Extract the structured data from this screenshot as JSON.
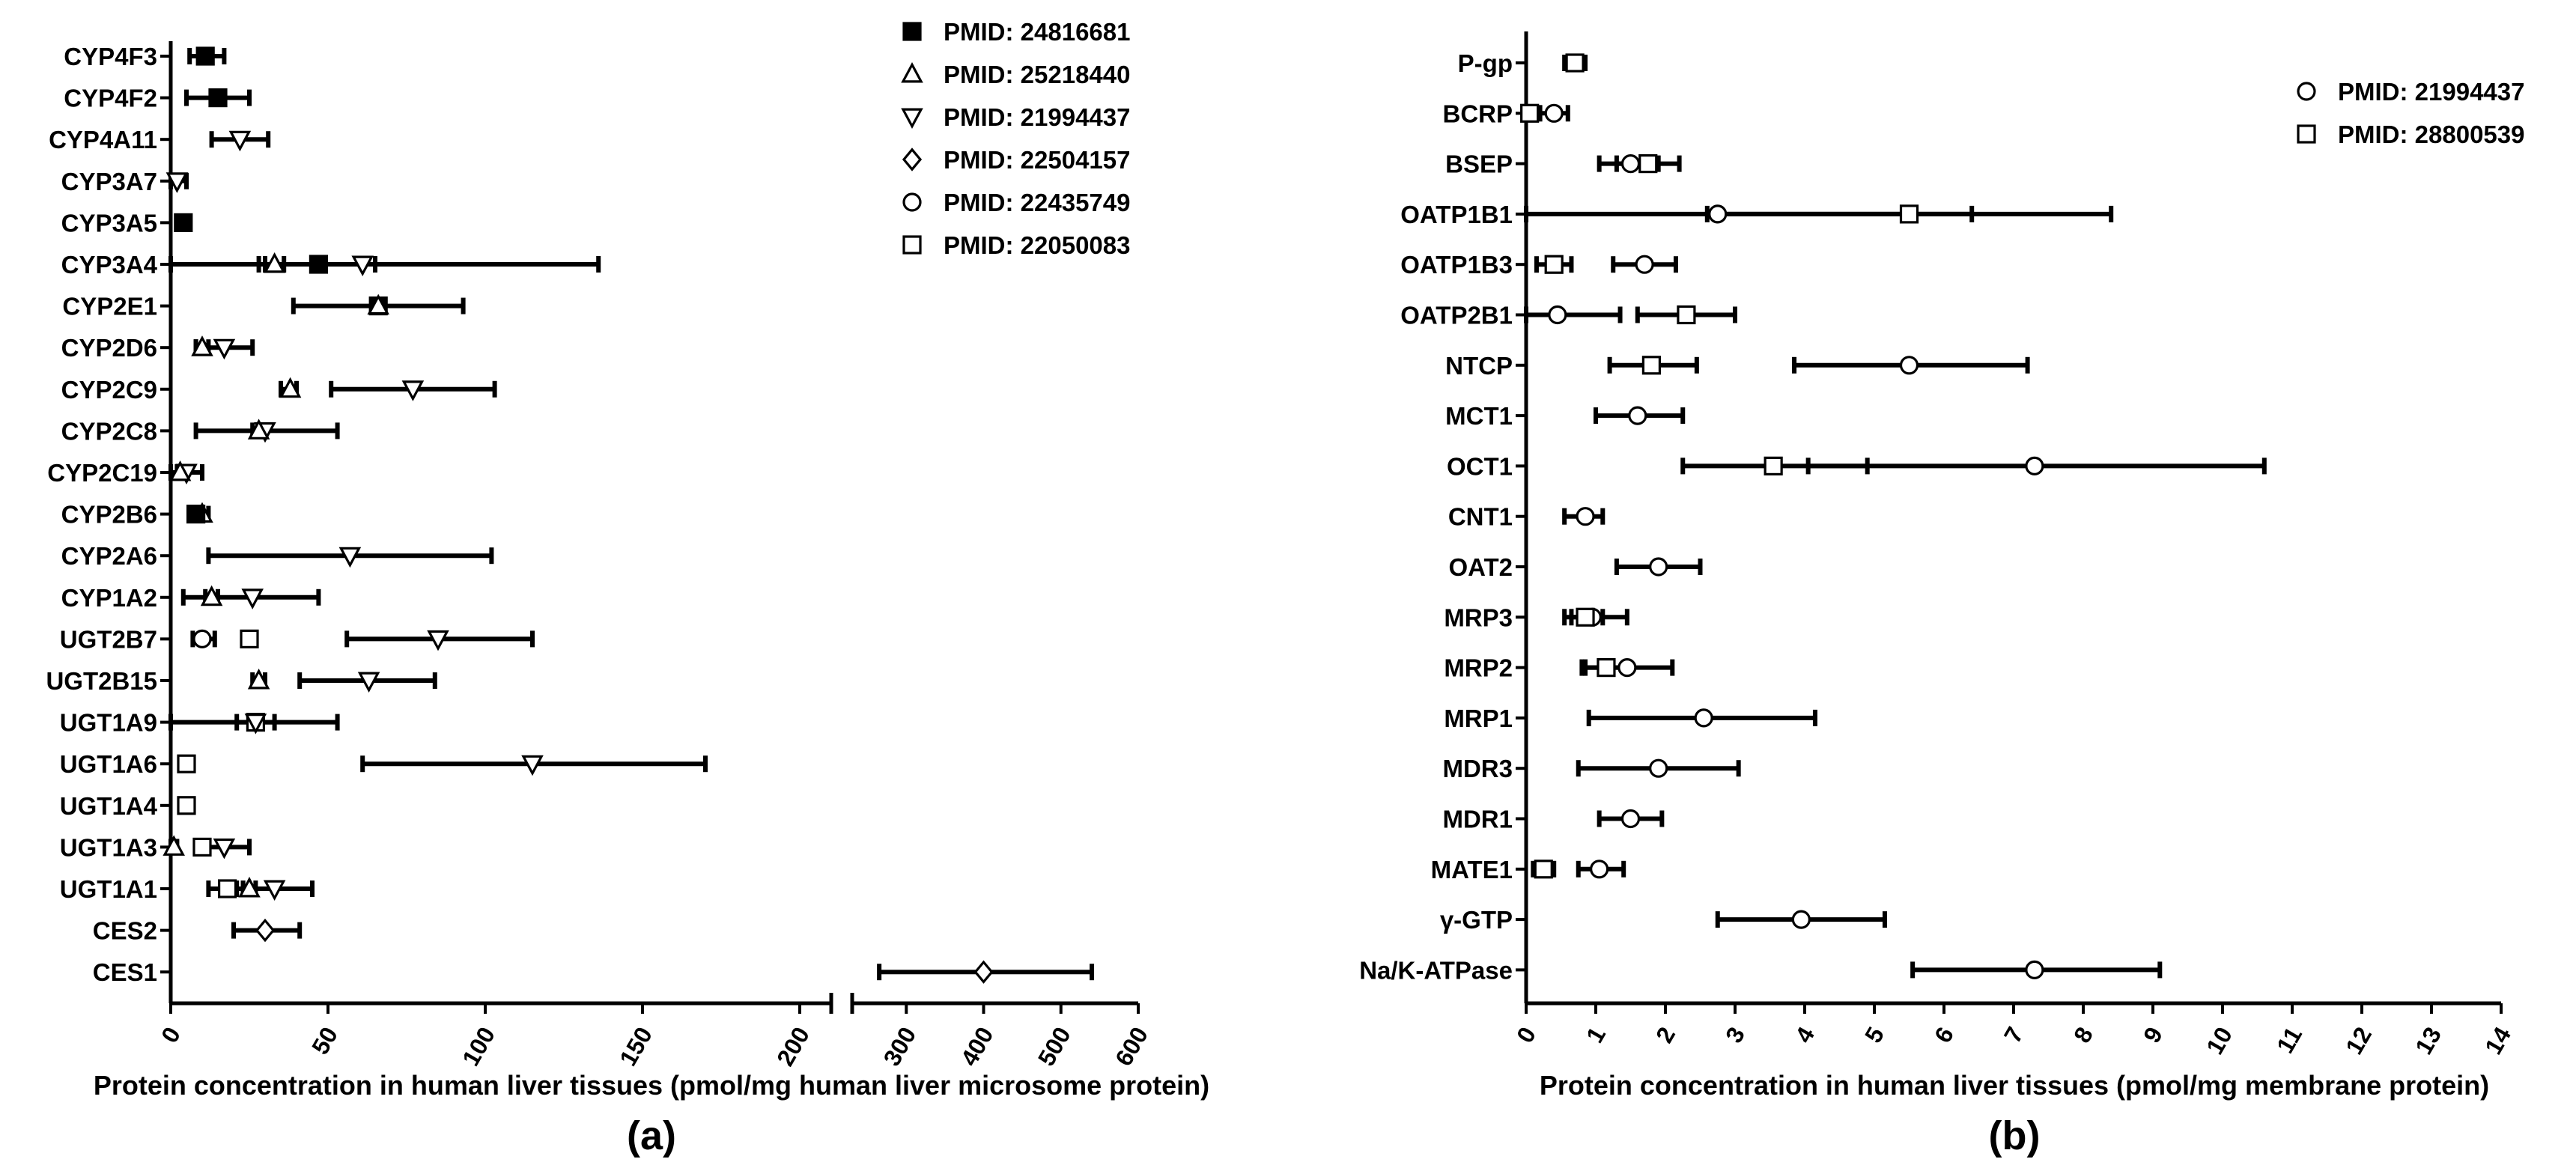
{
  "chart_data": [
    {
      "panel": "a",
      "type": "scatter",
      "panel_label": "(a)",
      "xlabel": "Protein concentration in human liver tissues (pmol/mg human liver microsome protein)",
      "ylabel": "",
      "xaxis": {
        "broken": true,
        "segment1": {
          "range": [
            0,
            210
          ],
          "ticks": [
            0,
            50,
            100,
            150,
            200
          ]
        },
        "segment2": {
          "range": [
            230,
            600
          ],
          "ticks": [
            300,
            400,
            500,
            600
          ]
        }
      },
      "grid": false,
      "legend": {
        "position": "top-right",
        "entries": [
          {
            "id": "s24816681",
            "label": "PMID: 24816681",
            "marker": "square-filled"
          },
          {
            "id": "s25218440",
            "label": "PMID: 25218440",
            "marker": "triangle-up"
          },
          {
            "id": "s21994437",
            "label": "PMID: 21994437",
            "marker": "triangle-down"
          },
          {
            "id": "s22504157",
            "label": "PMID: 22504157",
            "marker": "diamond"
          },
          {
            "id": "s22435749",
            "label": "PMID: 22435749",
            "marker": "circle"
          },
          {
            "id": "s22050083",
            "label": "PMID: 22050083",
            "marker": "square"
          }
        ]
      },
      "categories": [
        "CYP4F3",
        "CYP4F2",
        "CYP4A11",
        "CYP3A7",
        "CYP3A5",
        "CYP3A4",
        "CYP2E1",
        "CYP2D6",
        "CYP2C9",
        "CYP2C8",
        "CYP2C19",
        "CYP2B6",
        "CYP2A6",
        "CYP1A2",
        "UGT2B7",
        "UGT2B15",
        "UGT1A9",
        "UGT1A6",
        "UGT1A4",
        "UGT1A3",
        "UGT1A1",
        "CES2",
        "CES1"
      ],
      "points": [
        {
          "cat": "CYP4F3",
          "series": "s24816681",
          "mean": 11,
          "low": 6,
          "high": 17
        },
        {
          "cat": "CYP4F2",
          "series": "s24816681",
          "mean": 15,
          "low": 5,
          "high": 25
        },
        {
          "cat": "CYP4A11",
          "series": "s21994437",
          "mean": 22,
          "low": 13,
          "high": 31
        },
        {
          "cat": "CYP3A7",
          "series": "s21994437",
          "mean": 2,
          "low": 0,
          "high": 5
        },
        {
          "cat": "CYP3A5",
          "series": "s24816681",
          "mean": 4,
          "low": 2,
          "high": 6
        },
        {
          "cat": "CYP3A4",
          "series": "s21994437",
          "mean": 61,
          "low": 0,
          "high": 136
        },
        {
          "cat": "CYP3A4",
          "series": "s24816681",
          "mean": 47,
          "low": 28,
          "high": 65
        },
        {
          "cat": "CYP3A4",
          "series": "s25218440",
          "mean": 33,
          "low": 30,
          "high": 36
        },
        {
          "cat": "CYP2E1",
          "series": "s24816681",
          "mean": 66,
          "low": 39,
          "high": 93
        },
        {
          "cat": "CYP2E1",
          "series": "s25218440",
          "mean": 66,
          "low": 64,
          "high": 68
        },
        {
          "cat": "CYP2D6",
          "series": "s21994437",
          "mean": 17,
          "low": 8,
          "high": 26
        },
        {
          "cat": "CYP2D6",
          "series": "s25218440",
          "mean": 10,
          "low": 8,
          "high": 12
        },
        {
          "cat": "CYP2C9",
          "series": "s21994437",
          "mean": 77,
          "low": 51,
          "high": 103
        },
        {
          "cat": "CYP2C9",
          "series": "s25218440",
          "mean": 38,
          "low": 35,
          "high": 40
        },
        {
          "cat": "CYP2C8",
          "series": "s21994437",
          "mean": 30,
          "low": 8,
          "high": 53
        },
        {
          "cat": "CYP2C8",
          "series": "s25218440",
          "mean": 28,
          "low": 26,
          "high": 30
        },
        {
          "cat": "CYP2C19",
          "series": "s21994437",
          "mean": 5,
          "low": 0,
          "high": 10
        },
        {
          "cat": "CYP2C19",
          "series": "s25218440",
          "mean": 3,
          "low": 2,
          "high": 4
        },
        {
          "cat": "CYP2B6",
          "series": "s25218440",
          "mean": 10,
          "low": 8,
          "high": 12
        },
        {
          "cat": "CYP2B6",
          "series": "s24816681",
          "mean": 8,
          "low": 6,
          "high": 10
        },
        {
          "cat": "CYP2A6",
          "series": "s21994437",
          "mean": 57,
          "low": 12,
          "high": 102
        },
        {
          "cat": "CYP1A2",
          "series": "s21994437",
          "mean": 26,
          "low": 4,
          "high": 47
        },
        {
          "cat": "CYP1A2",
          "series": "s25218440",
          "mean": 13,
          "low": 11,
          "high": 15
        },
        {
          "cat": "UGT2B7",
          "series": "s21994437",
          "mean": 85,
          "low": 56,
          "high": 115
        },
        {
          "cat": "UGT2B7",
          "series": "s22050083",
          "mean": 25,
          "low": 23,
          "high": 27
        },
        {
          "cat": "UGT2B7",
          "series": "s22435749",
          "mean": 10,
          "low": 7,
          "high": 14
        },
        {
          "cat": "UGT2B15",
          "series": "s21994437",
          "mean": 63,
          "low": 41,
          "high": 84
        },
        {
          "cat": "UGT2B15",
          "series": "s25218440",
          "mean": 28,
          "low": 26,
          "high": 30
        },
        {
          "cat": "UGT1A9",
          "series": "s22050083",
          "mean": 27,
          "low": 21,
          "high": 33
        },
        {
          "cat": "UGT1A9",
          "series": "s21994437",
          "mean": 27,
          "low": 0,
          "high": 53
        },
        {
          "cat": "UGT1A6",
          "series": "s21994437",
          "mean": 115,
          "low": 61,
          "high": 170
        },
        {
          "cat": "UGT1A6",
          "series": "s22050083",
          "mean": 5,
          "low": 5,
          "high": 5
        },
        {
          "cat": "UGT1A4",
          "series": "s22050083",
          "mean": 5,
          "low": 5,
          "high": 5
        },
        {
          "cat": "UGT1A3",
          "series": "s21994437",
          "mean": 17,
          "low": 10,
          "high": 25
        },
        {
          "cat": "UGT1A3",
          "series": "s22050083",
          "mean": 10,
          "low": 8,
          "high": 12
        },
        {
          "cat": "UGT1A3",
          "series": "s25218440",
          "mean": 1,
          "low": 0,
          "high": 2
        },
        {
          "cat": "UGT1A1",
          "series": "s21994437",
          "mean": 33,
          "low": 21,
          "high": 45
        },
        {
          "cat": "UGT1A1",
          "series": "s22050083",
          "mean": 18,
          "low": 12,
          "high": 23
        },
        {
          "cat": "UGT1A1",
          "series": "s25218440",
          "mean": 25,
          "low": 23,
          "high": 27
        },
        {
          "cat": "CES2",
          "series": "s22504157",
          "mean": 30,
          "low": 20,
          "high": 41
        },
        {
          "cat": "CES1",
          "series": "s22504157",
          "mean": 400,
          "low": 265,
          "high": 540
        }
      ]
    },
    {
      "panel": "b",
      "type": "scatter",
      "panel_label": "(b)",
      "xlabel": "Protein concentration in human liver tissues (pmol/mg membrane protein)",
      "ylabel": "",
      "xlim": [
        0,
        14
      ],
      "xticks": [
        0,
        1,
        2,
        3,
        4,
        5,
        6,
        7,
        8,
        9,
        10,
        11,
        12,
        13,
        14
      ],
      "grid": false,
      "legend": {
        "position": "top-right",
        "entries": [
          {
            "id": "s21994437",
            "label": "PMID: 21994437",
            "marker": "circle"
          },
          {
            "id": "s28800539",
            "label": "PMID: 28800539",
            "marker": "square"
          }
        ]
      },
      "categories": [
        "P-gp",
        "BCRP",
        "BSEP",
        "OATP1B1",
        "OATP1B3",
        "OATP2B1",
        "NTCP",
        "MCT1",
        "OCT1",
        "CNT1",
        "OAT2",
        "MRP3",
        "MRP2",
        "MRP1",
        "MDR3",
        "MDR1",
        "MATE1",
        "γ-GTP",
        "Na/K-ATPase"
      ],
      "points": [
        {
          "cat": "P-gp",
          "series": "s28800539",
          "mean": 0.7,
          "low": 0.55,
          "high": 0.85
        },
        {
          "cat": "BCRP",
          "series": "s21994437",
          "mean": 0.4,
          "low": 0.2,
          "high": 0.6
        },
        {
          "cat": "BCRP",
          "series": "s28800539",
          "mean": 0.05,
          "low": 0.0,
          "high": 0.1
        },
        {
          "cat": "BSEP",
          "series": "s21994437",
          "mean": 1.5,
          "low": 1.05,
          "high": 1.9
        },
        {
          "cat": "BSEP",
          "series": "s28800539",
          "mean": 1.75,
          "low": 1.3,
          "high": 2.2
        },
        {
          "cat": "OATP1B1",
          "series": "s21994437",
          "mean": 2.75,
          "low": 0.0,
          "high": 6.4
        },
        {
          "cat": "OATP1B1",
          "series": "s28800539",
          "mean": 5.5,
          "low": 2.6,
          "high": 8.4
        },
        {
          "cat": "OATP1B3",
          "series": "s21994437",
          "mean": 1.7,
          "low": 1.25,
          "high": 2.15
        },
        {
          "cat": "OATP1B3",
          "series": "s28800539",
          "mean": 0.4,
          "low": 0.15,
          "high": 0.65
        },
        {
          "cat": "OATP2B1",
          "series": "s21994437",
          "mean": 0.45,
          "low": 0.0,
          "high": 1.35
        },
        {
          "cat": "OATP2B1",
          "series": "s28800539",
          "mean": 2.3,
          "low": 1.6,
          "high": 3.0
        },
        {
          "cat": "NTCP",
          "series": "s21994437",
          "mean": 5.5,
          "low": 3.85,
          "high": 7.2
        },
        {
          "cat": "NTCP",
          "series": "s28800539",
          "mean": 1.8,
          "low": 1.2,
          "high": 2.45
        },
        {
          "cat": "MCT1",
          "series": "s21994437",
          "mean": 1.6,
          "low": 1.0,
          "high": 2.25
        },
        {
          "cat": "OCT1",
          "series": "s21994437",
          "mean": 7.3,
          "low": 4.05,
          "high": 10.6
        },
        {
          "cat": "OCT1",
          "series": "s28800539",
          "mean": 3.55,
          "low": 2.25,
          "high": 4.9
        },
        {
          "cat": "CNT1",
          "series": "s21994437",
          "mean": 0.85,
          "low": 0.55,
          "high": 1.1
        },
        {
          "cat": "OAT2",
          "series": "s21994437",
          "mean": 1.9,
          "low": 1.3,
          "high": 2.5
        },
        {
          "cat": "MRP3",
          "series": "s21994437",
          "mean": 0.95,
          "low": 0.55,
          "high": 1.45
        },
        {
          "cat": "MRP3",
          "series": "s28800539",
          "mean": 0.85,
          "low": 0.65,
          "high": 1.1
        },
        {
          "cat": "MRP2",
          "series": "s21994437",
          "mean": 1.45,
          "low": 0.8,
          "high": 2.1
        },
        {
          "cat": "MRP2",
          "series": "s28800539",
          "mean": 1.15,
          "low": 0.85,
          "high": 1.45
        },
        {
          "cat": "MRP1",
          "series": "s21994437",
          "mean": 2.55,
          "low": 0.9,
          "high": 4.15
        },
        {
          "cat": "MDR3",
          "series": "s21994437",
          "mean": 1.9,
          "low": 0.75,
          "high": 3.05
        },
        {
          "cat": "MDR1",
          "series": "s21994437",
          "mean": 1.5,
          "low": 1.05,
          "high": 1.95
        },
        {
          "cat": "MATE1",
          "series": "s21994437",
          "mean": 1.05,
          "low": 0.75,
          "high": 1.4
        },
        {
          "cat": "MATE1",
          "series": "s28800539",
          "mean": 0.25,
          "low": 0.1,
          "high": 0.4
        },
        {
          "cat": "γ-GTP",
          "series": "s21994437",
          "mean": 3.95,
          "low": 2.75,
          "high": 5.15
        },
        {
          "cat": "Na/K-ATPase",
          "series": "s21994437",
          "mean": 7.3,
          "low": 5.55,
          "high": 9.1
        }
      ]
    }
  ]
}
